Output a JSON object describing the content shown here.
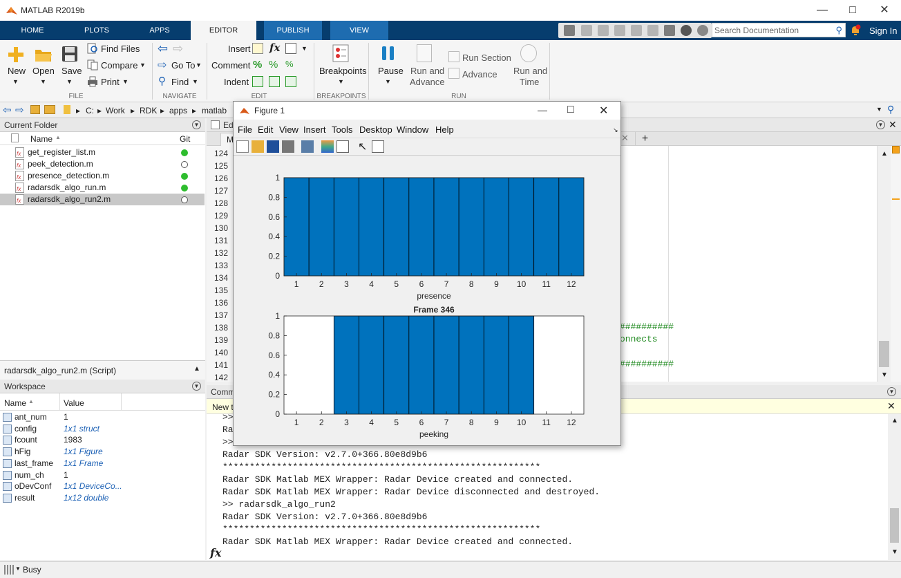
{
  "app": {
    "title": "MATLAB R2019b"
  },
  "tabs": [
    "HOME",
    "PLOTS",
    "APPS",
    "EDITOR",
    "PUBLISH",
    "VIEW"
  ],
  "search": {
    "placeholder": "Search Documentation"
  },
  "signin": "Sign In",
  "ribbon": {
    "new": "New",
    "open": "Open",
    "save": "Save",
    "find_files": "Find Files",
    "compare": "Compare",
    "print": "Print",
    "go_to": "Go To",
    "find": "Find",
    "insert": "Insert",
    "comment": "Comment",
    "indent": "Indent",
    "breakpoints": "Breakpoints",
    "pause": "Pause",
    "run_and_advance_1": "Run and",
    "run_and_advance_2": "Advance",
    "run_section": "Run Section",
    "advance": "Advance",
    "run_and_time_1": "Run and",
    "run_and_time_2": "Time",
    "groups": {
      "file": "FILE",
      "navigate": "NAVIGATE",
      "edit": "EDIT",
      "breakpoints": "BREAKPOINTS",
      "run": "RUN"
    }
  },
  "address": {
    "drive": "C:",
    "parts": [
      "Work",
      "RDK",
      "apps",
      "matlab"
    ]
  },
  "current_folder": {
    "title": "Current Folder",
    "col_name": "Name",
    "col_git": "Git",
    "files": [
      {
        "name": "get_register_list.m",
        "git": "green"
      },
      {
        "name": "peek_detection.m",
        "git": "empty"
      },
      {
        "name": "presence_detection.m",
        "git": "green"
      },
      {
        "name": "radarsdk_algo_run.m",
        "git": "green"
      },
      {
        "name": "radarsdk_algo_run2.m",
        "git": "empty",
        "selected": true
      }
    ],
    "details": "radarsdk_algo_run2.m  (Script)"
  },
  "workspace": {
    "title": "Workspace",
    "col_name": "Name",
    "col_value": "Value",
    "vars": [
      {
        "name": "ant_num",
        "value": "1",
        "obj": false
      },
      {
        "name": "config",
        "value": "1x1 struct",
        "obj": true
      },
      {
        "name": "fcount",
        "value": "1983",
        "obj": false
      },
      {
        "name": "hFig",
        "value": "1x1 Figure",
        "obj": true
      },
      {
        "name": "last_frame",
        "value": "1x1 Frame",
        "obj": true
      },
      {
        "name": "num_ch",
        "value": "1",
        "obj": false
      },
      {
        "name": "oDevConf",
        "value": "1x1 DeviceCo...",
        "obj": true
      },
      {
        "name": "result",
        "value": "1x12 double",
        "obj": true
      }
    ]
  },
  "editor": {
    "tab_prefix": "Ed",
    "tab_file_prefix": "M",
    "line_numbers": [
      "124",
      "125",
      "126",
      "127",
      "128",
      "129",
      "130",
      "131",
      "132",
      "133",
      "134",
      "135",
      "136",
      "137",
      "138",
      "139",
      "140",
      "141",
      "142"
    ],
    "frag_hash1": "##########",
    "frag_connects": "onnects",
    "frag_hash2": "##########"
  },
  "command_window": {
    "title_prefix": "Comm",
    "new_prefix": "New t",
    "partial_lines": [
      ">>",
      "Rad",
      ">>"
    ],
    "lines": [
      "Radar SDK Version: v2.7.0+366.80e8d9b6",
      "***********************************************************",
      "Radar SDK Matlab MEX Wrapper: Radar Device created and connected.",
      "Radar SDK Matlab MEX Wrapper: Radar Device disconnected and destroyed.",
      ">> radarsdk_algo_run2",
      "Radar SDK Version: v2.7.0+366.80e8d9b6",
      "***********************************************************",
      "Radar SDK Matlab MEX Wrapper: Radar Device created and connected."
    ],
    "prompt": "fx"
  },
  "figure": {
    "title": "Figure 1",
    "menu": [
      "File",
      "Edit",
      "View",
      "Insert",
      "Tools",
      "Desktop",
      "Window",
      "Help"
    ]
  },
  "chart_data": [
    {
      "type": "bar",
      "title": "",
      "xlabel": "presence",
      "ylabel": "",
      "categories": [
        1,
        2,
        3,
        4,
        5,
        6,
        7,
        8,
        9,
        10,
        11,
        12
      ],
      "values": [
        1,
        1,
        1,
        1,
        1,
        1,
        1,
        1,
        1,
        1,
        1,
        1
      ],
      "ylim": [
        0,
        1
      ],
      "yticks": [
        "0",
        "0.2",
        "0.4",
        "0.6",
        "0.8",
        "1"
      ],
      "color": "#0072bd"
    },
    {
      "type": "bar",
      "title": "Frame 346",
      "xlabel": "peeking",
      "ylabel": "",
      "categories": [
        1,
        2,
        3,
        4,
        5,
        6,
        7,
        8,
        9,
        10,
        11,
        12
      ],
      "values": [
        0,
        0,
        1,
        1,
        1,
        1,
        1,
        1,
        1,
        1,
        0,
        0
      ],
      "ylim": [
        0,
        1
      ],
      "yticks": [
        "0",
        "0.2",
        "0.4",
        "0.6",
        "0.8",
        "1"
      ],
      "color": "#0072bd"
    }
  ],
  "status": {
    "text": "Busy"
  },
  "colors": {
    "tabbar": "#063d6e",
    "accent": "#0072bd",
    "git_green": "#2ebd2e"
  }
}
